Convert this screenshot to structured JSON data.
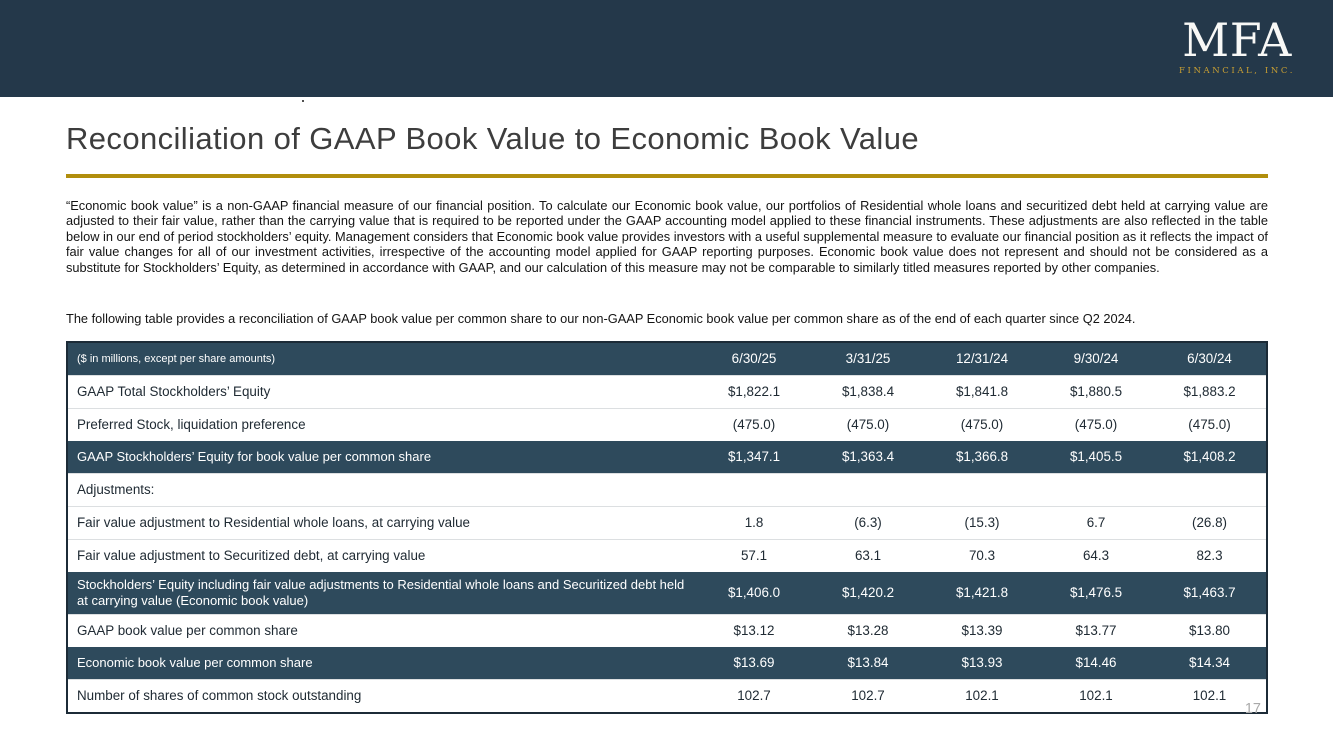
{
  "header": {
    "logo_text": "MFA",
    "logo_subtext": "FINANCIAL, INC."
  },
  "title": "Reconciliation of GAAP Book Value to Economic Book Value",
  "paragraphs": {
    "p1": "“Economic book value” is a non-GAAP financial measure of our financial position.  To calculate our Economic book value, our portfolios of Residential whole loans and securitized debt held at carrying value are adjusted to their fair value, rather than the carrying value that is required to be reported under the GAAP accounting model applied to these financial instruments.  These adjustments are also reflected in the table below in our end of period stockholders’ equity.  Management considers that Economic book value provides investors with a useful supplemental measure to evaluate our financial position as it reflects the impact of fair value changes for all of our investment activities, irrespective of the accounting model applied for GAAP reporting purposes.  Economic book value does not represent and should not be considered as a substitute for Stockholders’ Equity, as determined in accordance with GAAP, and our calculation of this measure may not be comparable to similarly titled measures reported by other companies.",
    "p2": "The following table provides a reconciliation of GAAP book value per common share to our non-GAAP Economic book value per common share as of the end of each quarter since Q2 2024."
  },
  "table": {
    "header": {
      "label": "($ in millions, except per share amounts)",
      "columns": [
        "6/30/25",
        "3/31/25",
        "12/31/24",
        "9/30/24",
        "6/30/24"
      ]
    },
    "rows": [
      {
        "label": "GAAP Total Stockholders’ Equity",
        "values": [
          "$1,822.1",
          "$1,838.4",
          "$1,841.8",
          "$1,880.5",
          "$1,883.2"
        ]
      },
      {
        "label": "Preferred Stock, liquidation preference",
        "values": [
          "(475.0)",
          "(475.0)",
          "(475.0)",
          "(475.0)",
          "(475.0)"
        ]
      },
      {
        "label": "GAAP Stockholders’ Equity for book value per common share",
        "values": [
          "$1,347.1",
          "$1,363.4",
          "$1,366.8",
          "$1,405.5",
          "$1,408.2"
        ]
      },
      {
        "label": "Adjustments:",
        "values": [
          "",
          "",
          "",
          "",
          ""
        ]
      },
      {
        "label": "Fair value adjustment to Residential whole loans, at carrying value",
        "values": [
          "1.8",
          "(6.3)",
          "(15.3)",
          "6.7",
          "(26.8)"
        ]
      },
      {
        "label": "Fair value adjustment to Securitized debt, at carrying value",
        "values": [
          "57.1",
          "63.1",
          "70.3",
          "64.3",
          "82.3"
        ]
      },
      {
        "label": "Stockholders’ Equity including fair value adjustments to Residential whole loans and Securitized debt held at carrying value (Economic book value)",
        "values": [
          "$1,406.0",
          "$1,420.2",
          "$1,421.8",
          "$1,476.5",
          "$1,463.7"
        ]
      },
      {
        "label": "GAAP book value per common share",
        "values": [
          "$13.12",
          "$13.28",
          "$13.39",
          "$13.77",
          "$13.80"
        ]
      },
      {
        "label": "Economic book value per common share",
        "values": [
          "$13.69",
          "$13.84",
          "$13.93",
          "$14.46",
          "$14.34"
        ]
      },
      {
        "label": "Number of shares of common stock outstanding",
        "values": [
          "102.7",
          "102.7",
          "102.1",
          "102.1",
          "102.1"
        ]
      }
    ]
  },
  "page_number": "17",
  "colors": {
    "banner_navy": "#24384A",
    "table_row_navy": "#2E4A5C",
    "gold_accent": "#B18E0D",
    "logo_gold": "#C89F33"
  }
}
